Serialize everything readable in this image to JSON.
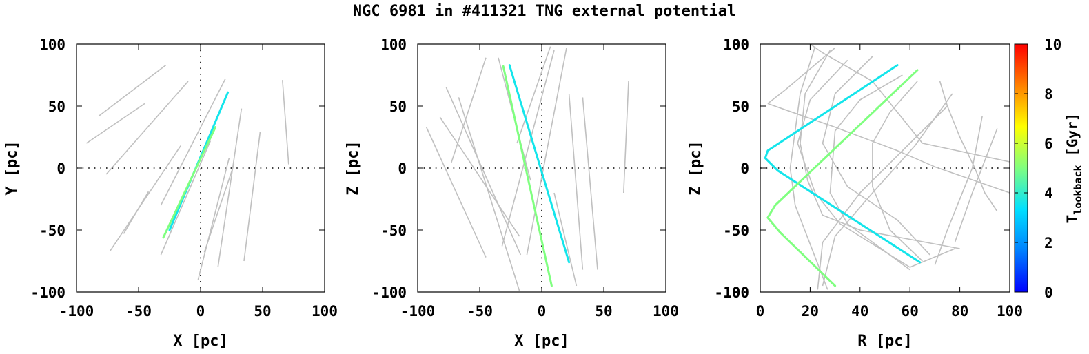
{
  "figure": {
    "title": "NGC 6981 in #411321 TNG external potential"
  },
  "colors": {
    "background_track": "#c0c0c0",
    "axes": "#000000",
    "colormap": [
      "#0000ff",
      "#0080ff",
      "#00e0ff",
      "#80ff80",
      "#ffff00",
      "#ff8000",
      "#ff0000"
    ]
  },
  "chart_data": [
    {
      "type": "line",
      "xlabel": "X [pc]",
      "ylabel": "Y [pc]",
      "xlim": [
        -100,
        100
      ],
      "ylim": [
        -100,
        100
      ],
      "xticks": [
        -100,
        -50,
        0,
        50,
        100
      ],
      "yticks": [
        -100,
        -50,
        0,
        50,
        100
      ],
      "xtick_labels": [
        "-100",
        "-50",
        "0",
        "50",
        "100"
      ],
      "ytick_labels": [
        "-100",
        "-50",
        "0",
        "50",
        "100"
      ],
      "zero_lines": true,
      "grey_tracks": [
        [
          [
            -82,
            42
          ],
          [
            -28,
            83
          ]
        ],
        [
          [
            -92,
            20
          ],
          [
            -45,
            52
          ]
        ],
        [
          [
            -76,
            -5
          ],
          [
            -10,
            70
          ]
        ],
        [
          [
            -32,
            -30
          ],
          [
            20,
            72
          ]
        ],
        [
          [
            -73,
            -67
          ],
          [
            -16,
            18
          ]
        ],
        [
          [
            -62,
            -53
          ],
          [
            -42,
            -19
          ]
        ],
        [
          [
            -32,
            -70
          ],
          [
            8,
            22
          ]
        ],
        [
          [
            -2,
            -90
          ],
          [
            23,
            8
          ]
        ],
        [
          [
            3,
            -68
          ],
          [
            27,
            3
          ]
        ],
        [
          [
            14,
            -80
          ],
          [
            33,
            48
          ]
        ],
        [
          [
            35,
            -75
          ],
          [
            48,
            29
          ]
        ],
        [
          [
            66,
            71
          ],
          [
            71,
            3
          ]
        ]
      ],
      "colored_tracks": [
        {
          "t_gyr": 3.6,
          "points": [
            [
              -25,
              -50
            ],
            [
              22,
              61
            ]
          ]
        },
        {
          "t_gyr": 5.0,
          "points": [
            [
              -30,
              -56
            ],
            [
              12,
              33
            ]
          ]
        }
      ]
    },
    {
      "type": "line",
      "xlabel": "X [pc]",
      "ylabel": "Z [pc]",
      "xlim": [
        -100,
        100
      ],
      "ylim": [
        -100,
        100
      ],
      "xticks": [
        -100,
        -50,
        0,
        50,
        100
      ],
      "yticks": [
        -100,
        -50,
        0,
        50,
        100
      ],
      "xtick_labels": [
        "-100",
        "-50",
        "0",
        "50",
        "100"
      ],
      "ytick_labels": [
        "-100",
        "-50",
        "0",
        "50",
        "100"
      ],
      "zero_lines": true,
      "grey_tracks": [
        [
          [
            -93,
            33
          ],
          [
            -45,
            -72
          ]
        ],
        [
          [
            -82,
            41
          ],
          [
            -18,
            -55
          ]
        ],
        [
          [
            -77,
            65
          ],
          [
            -17,
            -70
          ]
        ],
        [
          [
            -67,
            57
          ],
          [
            -18,
            -99
          ]
        ],
        [
          [
            -73,
            4
          ],
          [
            -45,
            89
          ]
        ],
        [
          [
            -35,
            89
          ],
          [
            -9,
            -10
          ]
        ],
        [
          [
            -32,
            -63
          ],
          [
            10,
            95
          ]
        ],
        [
          [
            -20,
            20
          ],
          [
            7,
            98
          ]
        ],
        [
          [
            -12,
            -70
          ],
          [
            20,
            97
          ]
        ],
        [
          [
            10,
            -20
          ],
          [
            28,
            -95
          ]
        ],
        [
          [
            22,
            60
          ],
          [
            33,
            -82
          ]
        ],
        [
          [
            33,
            57
          ],
          [
            45,
            -82
          ]
        ],
        [
          [
            66,
            -20
          ],
          [
            70,
            70
          ]
        ]
      ],
      "colored_tracks": [
        {
          "t_gyr": 3.6,
          "points": [
            [
              -26,
              83
            ],
            [
              22,
              -76
            ]
          ]
        },
        {
          "t_gyr": 5.0,
          "points": [
            [
              -31,
              82
            ],
            [
              8,
              -95
            ]
          ]
        }
      ]
    },
    {
      "type": "line",
      "xlabel": "R [pc]",
      "ylabel": "Z [pc]",
      "xlim": [
        0,
        100
      ],
      "ylim": [
        -100,
        100
      ],
      "xticks": [
        0,
        20,
        40,
        60,
        80,
        100
      ],
      "yticks": [
        -100,
        -50,
        0,
        50,
        100
      ],
      "xtick_labels": [
        "0",
        "20",
        "40",
        "60",
        "80",
        "100"
      ],
      "ytick_labels": [
        "-100",
        "-50",
        "0",
        "50",
        "100"
      ],
      "zero_lines": true,
      "grey_tracks": [
        [
          [
            3,
            52
          ],
          [
            10,
            63
          ],
          [
            30,
            97
          ]
        ],
        [
          [
            3,
            52
          ],
          [
            20,
            40
          ],
          [
            30,
            33
          ],
          [
            55,
            14
          ],
          [
            70,
            1
          ],
          [
            100,
            -20
          ]
        ],
        [
          [
            22,
            98
          ],
          [
            16,
            60
          ],
          [
            14,
            30
          ],
          [
            12,
            0
          ],
          [
            14,
            -30
          ],
          [
            27,
            -98
          ]
        ],
        [
          [
            28,
            95
          ],
          [
            18,
            60
          ],
          [
            16,
            20
          ],
          [
            19,
            -10
          ],
          [
            25,
            -38
          ],
          [
            40,
            -50
          ],
          [
            80,
            -65
          ]
        ],
        [
          [
            35,
            87
          ],
          [
            20,
            55
          ],
          [
            15,
            20
          ],
          [
            22,
            -20
          ],
          [
            32,
            -45
          ],
          [
            60,
            -80
          ],
          [
            78,
            -65
          ]
        ],
        [
          [
            45,
            90
          ],
          [
            30,
            60
          ],
          [
            25,
            20
          ],
          [
            35,
            -15
          ],
          [
            55,
            -42
          ],
          [
            68,
            -70
          ]
        ],
        [
          [
            57,
            75
          ],
          [
            40,
            55
          ],
          [
            30,
            30
          ],
          [
            28,
            -20
          ],
          [
            35,
            -45
          ],
          [
            60,
            -82
          ]
        ],
        [
          [
            63,
            70
          ],
          [
            52,
            45
          ],
          [
            45,
            20
          ],
          [
            45,
            -15
          ],
          [
            52,
            -50
          ],
          [
            65,
            -75
          ]
        ],
        [
          [
            72,
            70
          ],
          [
            75,
            50
          ],
          [
            80,
            25
          ],
          [
            86,
            0
          ],
          [
            90,
            -20
          ],
          [
            95,
            -35
          ]
        ],
        [
          [
            23,
            -98
          ],
          [
            25,
            -60
          ],
          [
            40,
            -20
          ],
          [
            60,
            20
          ],
          [
            75,
            50
          ]
        ],
        [
          [
            25,
            -95
          ],
          [
            30,
            -55
          ],
          [
            45,
            -20
          ],
          [
            62,
            18
          ],
          [
            77,
            60
          ]
        ],
        [
          [
            70,
            -78
          ],
          [
            75,
            -50
          ],
          [
            85,
            0
          ],
          [
            89,
            42
          ]
        ],
        [
          [
            78,
            -60
          ],
          [
            85,
            -20
          ],
          [
            95,
            32
          ]
        ],
        [
          [
            20,
            100
          ],
          [
            25,
            93
          ],
          [
            45,
            70
          ],
          [
            65,
            20
          ],
          [
            100,
            5
          ]
        ]
      ],
      "colored_tracks": [
        {
          "t_gyr": 3.6,
          "points": [
            [
              55,
              83
            ],
            [
              3,
              14
            ],
            [
              2,
              8
            ],
            [
              7,
              -2
            ],
            [
              64,
              -76
            ]
          ]
        },
        {
          "t_gyr": 5.0,
          "points": [
            [
              63,
              79
            ],
            [
              6,
              -30
            ],
            [
              3,
              -40
            ],
            [
              8,
              -52
            ],
            [
              30,
              -95
            ]
          ]
        }
      ]
    }
  ],
  "colorbar": {
    "label_main": "T",
    "label_sub": "lookback",
    "label_unit": " [Gyr]",
    "range": [
      0,
      10
    ],
    "ticks": [
      0,
      2,
      4,
      6,
      8,
      10
    ],
    "tick_labels": [
      "0",
      "2",
      "4",
      "6",
      "8",
      "10"
    ]
  }
}
